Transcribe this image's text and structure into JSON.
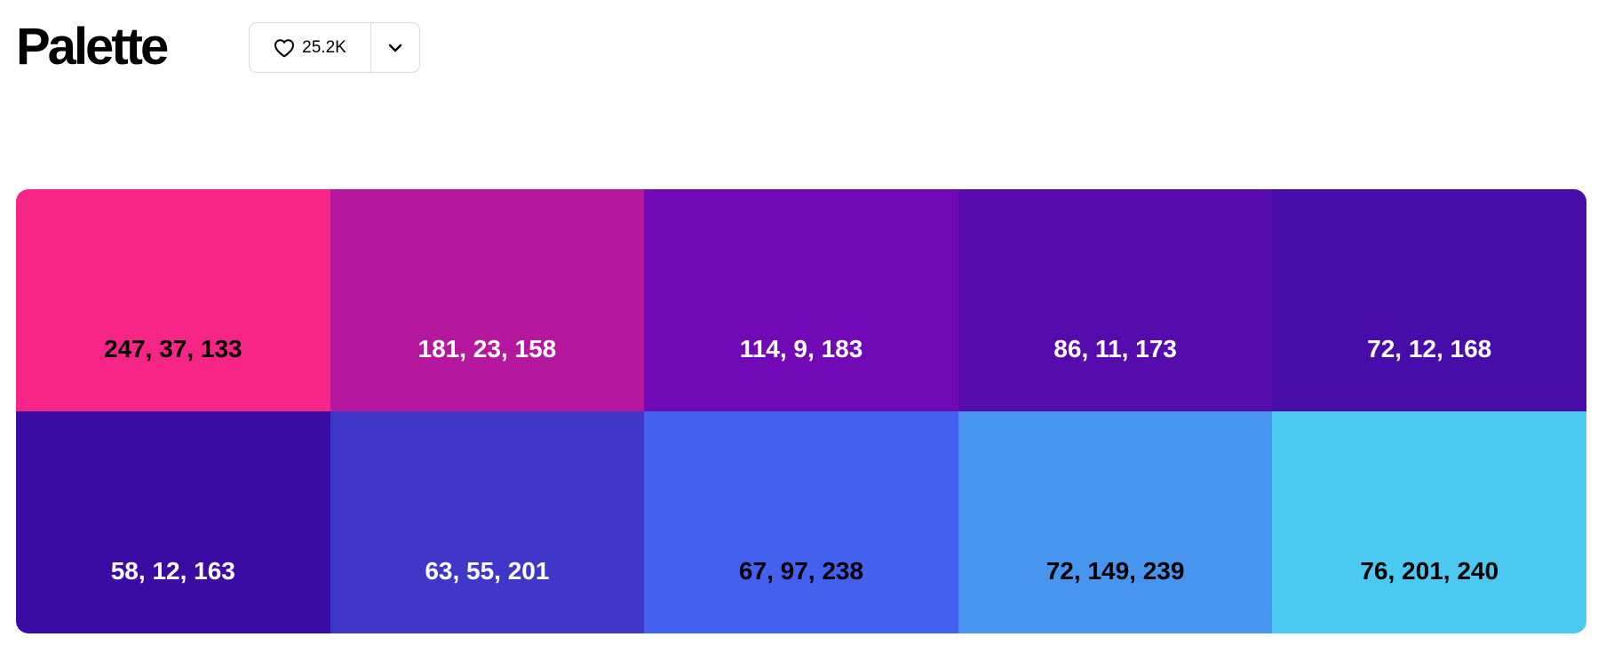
{
  "header": {
    "title": "Palette",
    "likes": "25.2K",
    "like_icon": "heart-icon",
    "more_icon": "chevron-down-icon"
  },
  "palette": {
    "swatches": [
      {
        "label": "247, 37, 133",
        "color": "#F72585",
        "text_color": "#000000"
      },
      {
        "label": "181, 23, 158",
        "color": "#B5179E",
        "text_color": "#FFFFFF"
      },
      {
        "label": "114, 9, 183",
        "color": "#7209B7",
        "text_color": "#FFFFFF"
      },
      {
        "label": "86, 11, 173",
        "color": "#560BAD",
        "text_color": "#FFFFFF"
      },
      {
        "label": "72, 12, 168",
        "color": "#480CA8",
        "text_color": "#FFFFFF"
      },
      {
        "label": "58, 12, 163",
        "color": "#3A0CA3",
        "text_color": "#FFFFFF"
      },
      {
        "label": "63, 55, 201",
        "color": "#3F37C9",
        "text_color": "#FFFFFF"
      },
      {
        "label": "67, 97, 238",
        "color": "#4361EE",
        "text_color": "#000000"
      },
      {
        "label": "72, 149, 239",
        "color": "#4895EF",
        "text_color": "#000000"
      },
      {
        "label": "76, 201, 240",
        "color": "#4CC9F0",
        "text_color": "#000000"
      }
    ]
  }
}
